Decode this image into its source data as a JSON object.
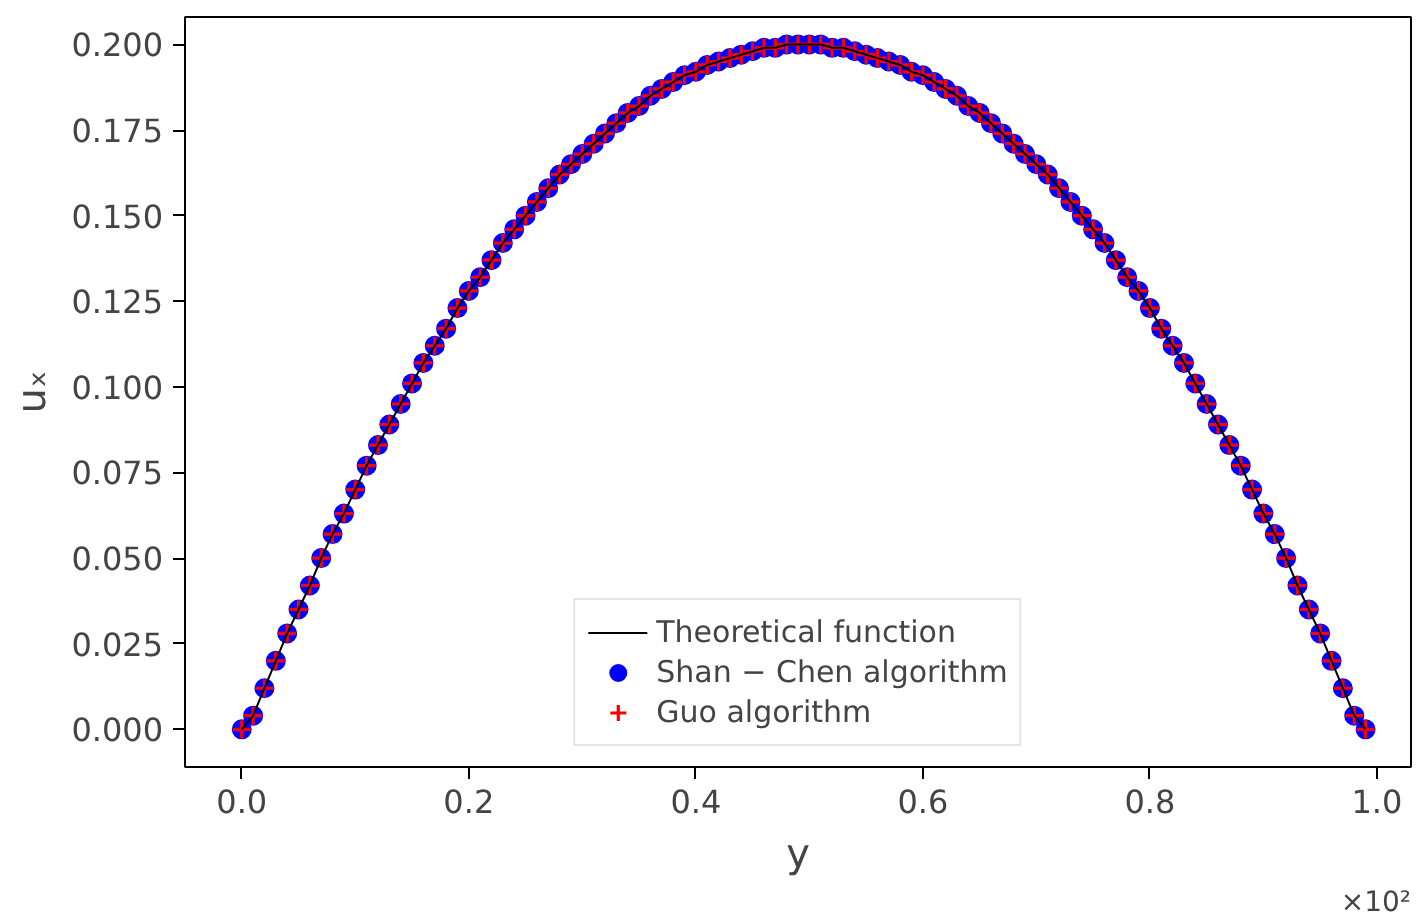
{
  "chart_data": {
    "type": "scatter",
    "xlabel": "y",
    "ylabel": "uₓ",
    "x": [
      0,
      0.01,
      0.02,
      0.03,
      0.04,
      0.05,
      0.06,
      0.07,
      0.08,
      0.09,
      0.1,
      0.11,
      0.12,
      0.13,
      0.14,
      0.15,
      0.16,
      0.17,
      0.18,
      0.19,
      0.2,
      0.21,
      0.22,
      0.23,
      0.24,
      0.25,
      0.26,
      0.27,
      0.28,
      0.29,
      0.3,
      0.31,
      0.32,
      0.33,
      0.34,
      0.35,
      0.36,
      0.37,
      0.38,
      0.39,
      0.4,
      0.41,
      0.42,
      0.43,
      0.44,
      0.45,
      0.46,
      0.47,
      0.48,
      0.49,
      0.5,
      0.51,
      0.52,
      0.53,
      0.54,
      0.55,
      0.56,
      0.57,
      0.58,
      0.59,
      0.6,
      0.61,
      0.62,
      0.63,
      0.64,
      0.65,
      0.66,
      0.67,
      0.68,
      0.69,
      0.7,
      0.71,
      0.72,
      0.73,
      0.74,
      0.75,
      0.76,
      0.77,
      0.78,
      0.79,
      0.8,
      0.81,
      0.82,
      0.83,
      0.84,
      0.85,
      0.86,
      0.87,
      0.88,
      0.89,
      0.9,
      0.91,
      0.92,
      0.93,
      0.94,
      0.95,
      0.96,
      0.97,
      0.98,
      0.99
    ],
    "series": [
      {
        "name": "Theoretical function",
        "type": "line",
        "color": "#000000",
        "line_style": "solid",
        "values": [
          0,
          0.004,
          0.012,
          0.02,
          0.028,
          0.035,
          0.042,
          0.05,
          0.057,
          0.063,
          0.07,
          0.077,
          0.083,
          0.089,
          0.095,
          0.101,
          0.107,
          0.112,
          0.117,
          0.123,
          0.128,
          0.132,
          0.137,
          0.142,
          0.146,
          0.15,
          0.154,
          0.158,
          0.162,
          0.165,
          0.168,
          0.171,
          0.174,
          0.177,
          0.18,
          0.182,
          0.185,
          0.187,
          0.189,
          0.191,
          0.192,
          0.194,
          0.195,
          0.196,
          0.197,
          0.198,
          0.199,
          0.199,
          0.2,
          0.2,
          0.2,
          0.2,
          0.199,
          0.199,
          0.198,
          0.197,
          0.196,
          0.195,
          0.194,
          0.192,
          0.191,
          0.189,
          0.187,
          0.185,
          0.182,
          0.18,
          0.177,
          0.174,
          0.171,
          0.168,
          0.165,
          0.162,
          0.158,
          0.154,
          0.15,
          0.146,
          0.142,
          0.137,
          0.132,
          0.128,
          0.123,
          0.117,
          0.112,
          0.107,
          0.101,
          0.095,
          0.089,
          0.083,
          0.077,
          0.07,
          0.063,
          0.057,
          0.05,
          0.042,
          0.035,
          0.028,
          0.02,
          0.012,
          0.004,
          0
        ]
      },
      {
        "name": "Shan − Chen algorithm",
        "marker": "circle",
        "color": "#0000ff",
        "values": [
          0,
          0.004,
          0.012,
          0.02,
          0.028,
          0.035,
          0.042,
          0.05,
          0.057,
          0.063,
          0.07,
          0.077,
          0.083,
          0.089,
          0.095,
          0.101,
          0.107,
          0.112,
          0.117,
          0.123,
          0.128,
          0.132,
          0.137,
          0.142,
          0.146,
          0.15,
          0.154,
          0.158,
          0.162,
          0.165,
          0.168,
          0.171,
          0.174,
          0.177,
          0.18,
          0.182,
          0.185,
          0.187,
          0.189,
          0.191,
          0.192,
          0.194,
          0.195,
          0.196,
          0.197,
          0.198,
          0.199,
          0.199,
          0.2,
          0.2,
          0.2,
          0.2,
          0.199,
          0.199,
          0.198,
          0.197,
          0.196,
          0.195,
          0.194,
          0.192,
          0.191,
          0.189,
          0.187,
          0.185,
          0.182,
          0.18,
          0.177,
          0.174,
          0.171,
          0.168,
          0.165,
          0.162,
          0.158,
          0.154,
          0.15,
          0.146,
          0.142,
          0.137,
          0.132,
          0.128,
          0.123,
          0.117,
          0.112,
          0.107,
          0.101,
          0.095,
          0.089,
          0.083,
          0.077,
          0.07,
          0.063,
          0.057,
          0.05,
          0.042,
          0.035,
          0.028,
          0.02,
          0.012,
          0.004,
          0
        ]
      },
      {
        "name": "Guo algorithm",
        "marker": "cross",
        "color": "#ff0000",
        "values": [
          0,
          0.004,
          0.012,
          0.02,
          0.028,
          0.035,
          0.042,
          0.05,
          0.057,
          0.063,
          0.07,
          0.077,
          0.083,
          0.089,
          0.095,
          0.101,
          0.107,
          0.112,
          0.117,
          0.123,
          0.128,
          0.132,
          0.137,
          0.142,
          0.146,
          0.15,
          0.154,
          0.158,
          0.162,
          0.165,
          0.168,
          0.171,
          0.174,
          0.177,
          0.18,
          0.182,
          0.185,
          0.187,
          0.189,
          0.191,
          0.192,
          0.194,
          0.195,
          0.196,
          0.197,
          0.198,
          0.199,
          0.199,
          0.2,
          0.2,
          0.2,
          0.2,
          0.199,
          0.199,
          0.198,
          0.197,
          0.196,
          0.195,
          0.194,
          0.192,
          0.191,
          0.189,
          0.187,
          0.185,
          0.182,
          0.18,
          0.177,
          0.174,
          0.171,
          0.168,
          0.165,
          0.162,
          0.158,
          0.154,
          0.15,
          0.146,
          0.142,
          0.137,
          0.132,
          0.128,
          0.123,
          0.117,
          0.112,
          0.107,
          0.101,
          0.095,
          0.089,
          0.083,
          0.077,
          0.07,
          0.063,
          0.057,
          0.05,
          0.042,
          0.035,
          0.028,
          0.02,
          0.012,
          0.004,
          0
        ]
      }
    ],
    "xlim": [
      -0.05,
      1.03
    ],
    "xticks": [
      {
        "value": 0,
        "label": "0.0"
      },
      0.2,
      0.4,
      0.6,
      0.8,
      {
        "value": 1,
        "label": "1.0"
      }
    ],
    "ylim": [
      -0.011,
      0.208
    ],
    "yticks": [
      {
        "value": 0,
        "label": "0.000"
      },
      {
        "value": 0.025,
        "label": "0.025"
      },
      {
        "value": 0.05,
        "label": "0.050"
      },
      {
        "value": 0.075,
        "label": "0.075"
      },
      {
        "value": 0.1,
        "label": "0.100"
      },
      {
        "value": 0.125,
        "label": "0.125"
      },
      {
        "value": 0.15,
        "label": "0.150"
      },
      {
        "value": 0.175,
        "label": "0.175"
      },
      {
        "value": 0.2,
        "label": "0.200"
      }
    ],
    "annotations": [
      "×10²"
    ],
    "grid": false,
    "legend": "bottom"
  }
}
